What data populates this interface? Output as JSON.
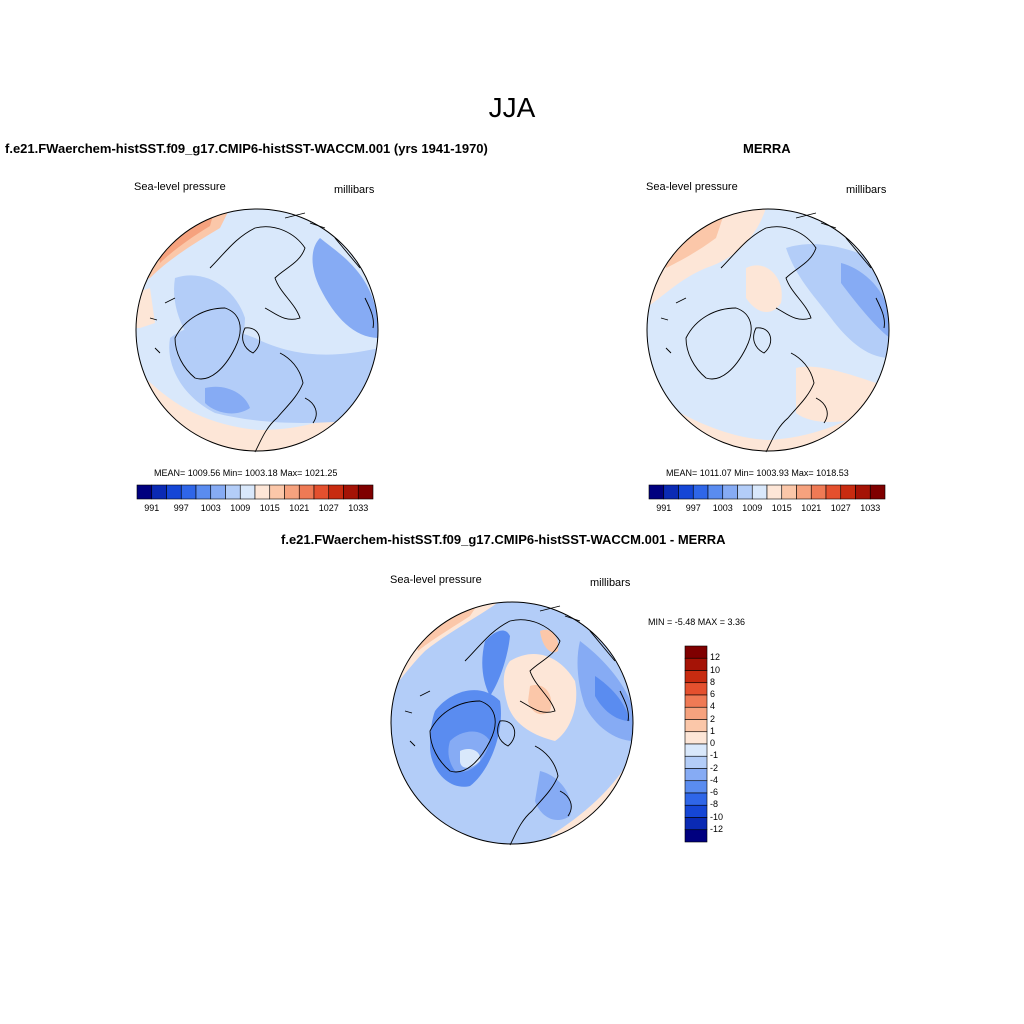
{
  "page": {
    "title": "JJA"
  },
  "panels": [
    {
      "title": "f.e21.FWaerchem-histSST.f09_g17.CMIP6-histSST-WACCM.001 (yrs 1941-1970)",
      "field_label": "Sea-level pressure",
      "units": "millibars",
      "stats_text": "MEAN= 1009.56  Min= 1003.18  Max= 1021.25",
      "colorbar_labels": [
        "991",
        "997",
        "1003",
        "1009",
        "1015",
        "1021",
        "1027",
        "1033"
      ]
    },
    {
      "title": "MERRA",
      "field_label": "Sea-level pressure",
      "units": "millibars",
      "stats_text": "MEAN= 1011.07  Min= 1003.93  Max= 1018.53",
      "colorbar_labels": [
        "991",
        "997",
        "1003",
        "1009",
        "1015",
        "1021",
        "1027",
        "1033"
      ]
    },
    {
      "title": "f.e21.FWaerchem-histSST.f09_g17.CMIP6-histSST-WACCM.001 - MERRA",
      "field_label": "Sea-level pressure",
      "units": "millibars",
      "stats_text": "MIN =  -5.48 MAX =   3.36",
      "colorbar_labels": [
        "12",
        "10",
        "8",
        "6",
        "4",
        "2",
        "1",
        "0",
        "-1",
        "-2",
        "-4",
        "-6",
        "-8",
        "-10",
        "-12"
      ]
    }
  ],
  "colors": {
    "abs_scale": [
      "#00007f",
      "#0a2ab4",
      "#1546d6",
      "#2f66e8",
      "#5a8cf0",
      "#86abf4",
      "#b3cdf8",
      "#d9e8fb",
      "#fde6d7",
      "#fbc7a9",
      "#f6a27e",
      "#ef7a55",
      "#e4502e",
      "#c82b10",
      "#a51306",
      "#7f0000"
    ],
    "diff_scale": [
      "#7f0000",
      "#a51306",
      "#c82b10",
      "#e4502e",
      "#ef7a55",
      "#f6a27e",
      "#fbc7a9",
      "#fde6d7",
      "#d9e8fb",
      "#b3cdf8",
      "#86abf4",
      "#5a8cf0",
      "#2f66e8",
      "#1546d6",
      "#0a2ab4",
      "#00007f"
    ]
  }
}
